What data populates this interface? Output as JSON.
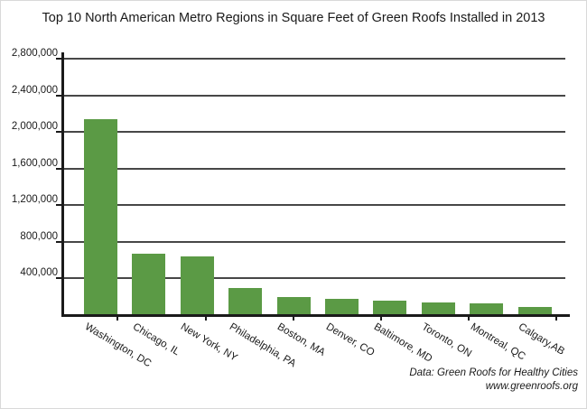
{
  "page": {
    "title": "Top 10 North American Metro Regions in Square Feet of Green Roofs Installed in 2013",
    "source_line1": "Data: Green Roofs for Healthy Cities",
    "source_line2": "www.greenroofs.org"
  },
  "colors": {
    "bar": "#5b9a45",
    "axis": "#1a1a1a",
    "gridline": "#474747",
    "text": "#1a1a1a",
    "page_border": "#d9d9d9"
  },
  "chart_data": {
    "type": "bar",
    "title": "Top 10 North American Metro Regions in Square Feet of Green Roofs Installed in 2013",
    "categories": [
      "Washington, DC",
      "Chicago, IL",
      "New York, NY",
      "Philadelphia, PA",
      "Boston, MA",
      "Denver, CO",
      "Baltimore, MD",
      "Toronto, ON",
      "Montreal, QC",
      "Calgary,AB"
    ],
    "values": [
      2140000,
      675000,
      640000,
      295000,
      200000,
      175000,
      155000,
      140000,
      125000,
      90000
    ],
    "unit": "square feet",
    "xlabel": "",
    "ylabel": "",
    "ylim": [
      0,
      2800000
    ],
    "ytick_step": 400000,
    "ytick_labels": [
      "400,000",
      "800,000",
      "1,200,000",
      "1,600,000",
      "2,000,000",
      "2,400,000",
      "2,800,000"
    ],
    "grid": true,
    "legend": false,
    "bar_color": "#5b9a45",
    "annotations": [
      "Data: Green Roofs for Healthy Cities",
      "www.greenroofs.org"
    ]
  }
}
